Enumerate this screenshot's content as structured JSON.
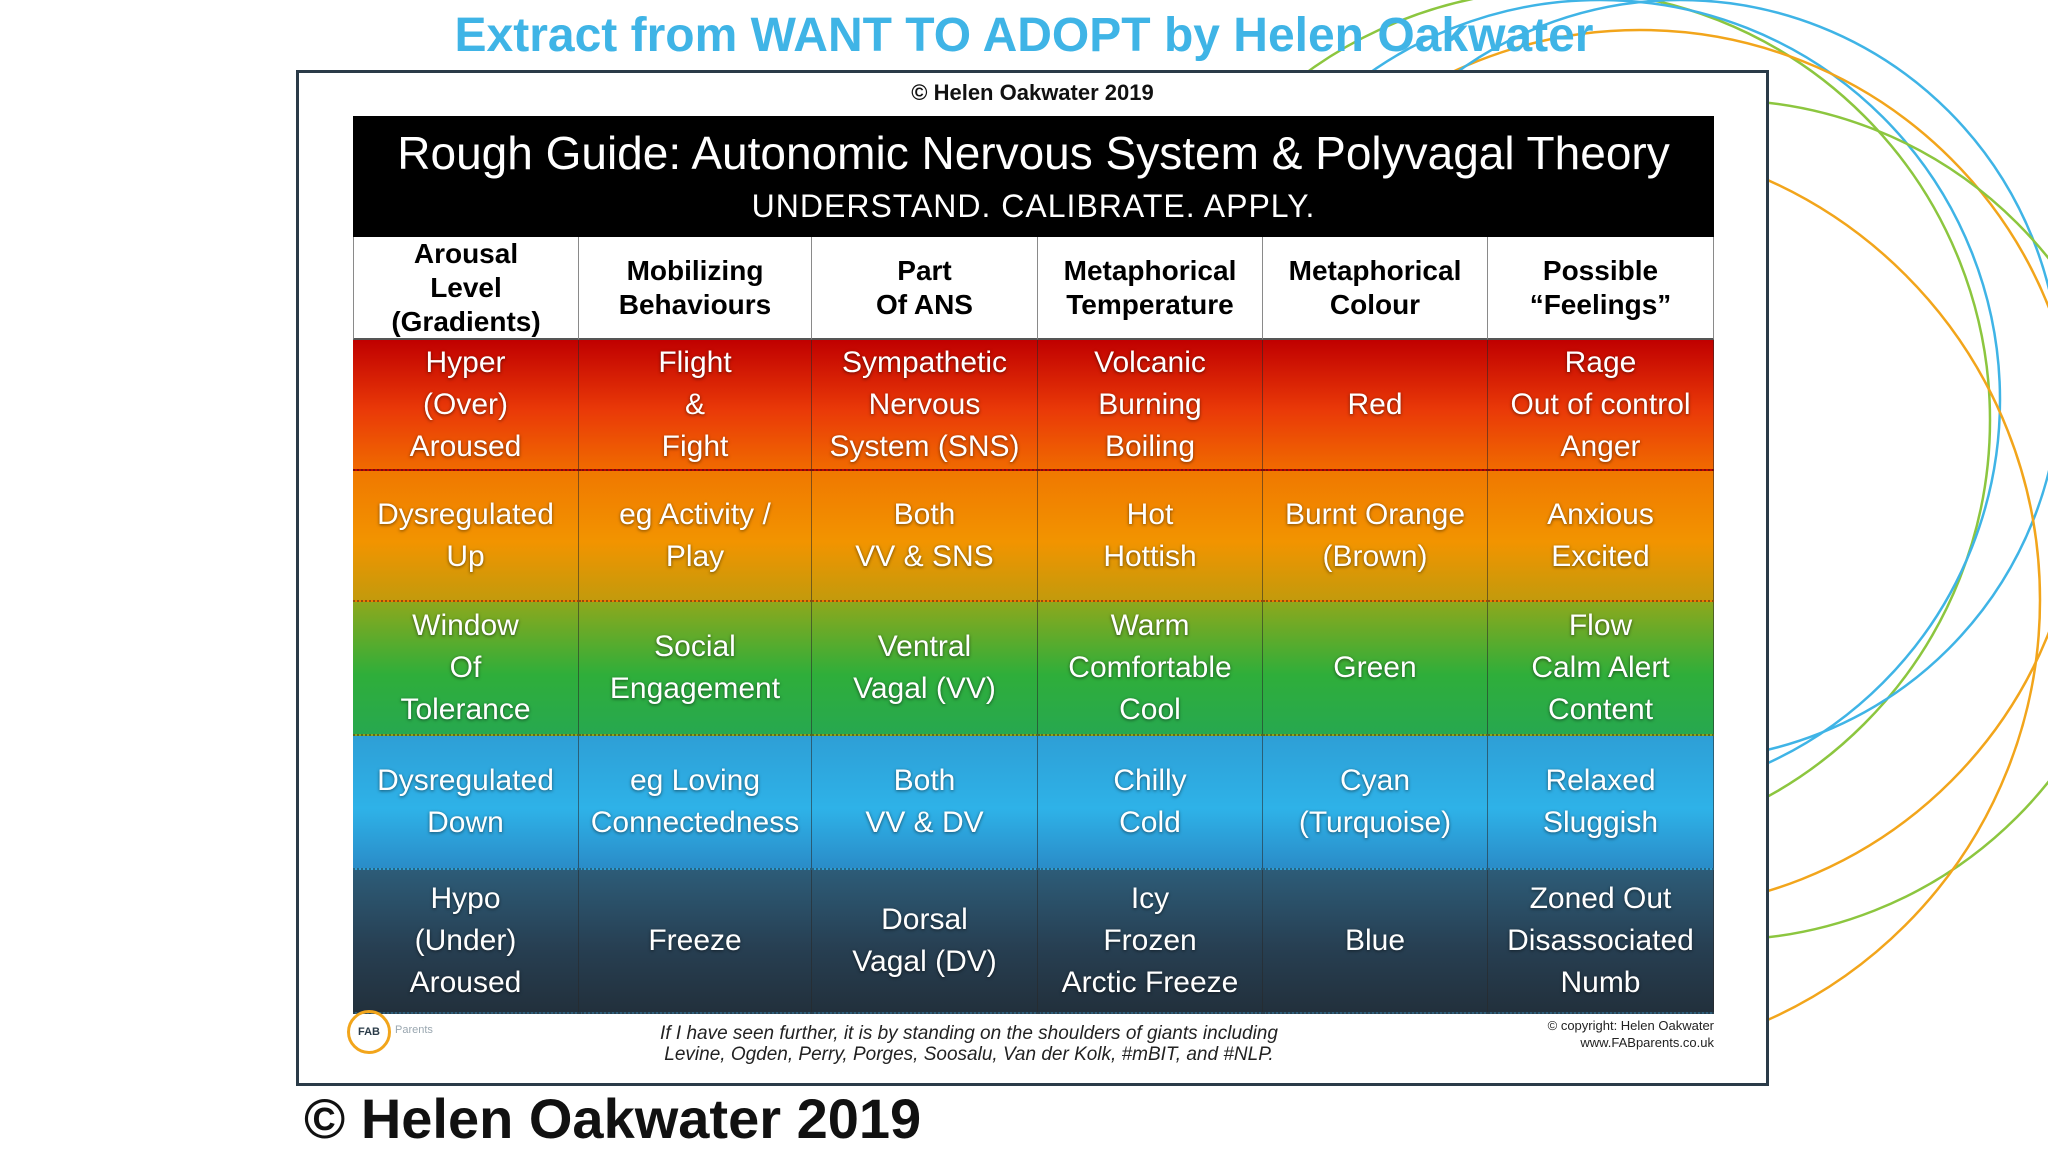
{
  "extract_title": "Extract from WANT TO ADOPT by Helen Oakwater",
  "top_copyright": "© Helen Oakwater 2019",
  "banner": {
    "title": "Rough Guide: Autonomic Nervous System & Polyvagal Theory",
    "subtitle": "UNDERSTAND. CALIBRATE. APPLY."
  },
  "table": {
    "headers": [
      "Arousal\nLevel\n(Gradients)",
      "Mobilizing\nBehaviours",
      "Part\nOf ANS",
      "Metaphorical\nTemperature",
      "Metaphorical\nColour",
      "Possible\n“Feelings”"
    ],
    "rows": [
      [
        "Hyper\n(Over)\nAroused",
        "Flight\n&\nFight",
        "Sympathetic\nNervous\nSystem (SNS)",
        "Volcanic\nBurning\nBoiling",
        "Red",
        "Rage\nOut of control\nAnger"
      ],
      [
        "Dysregulated\nUp",
        "eg Activity /\nPlay",
        "Both\nVV & SNS",
        "Hot\nHottish",
        "Burnt Orange\n(Brown)",
        "Anxious\nExcited"
      ],
      [
        "Window\nOf\nTolerance",
        "Social\nEngagement",
        "Ventral\nVagal (VV)",
        "Warm\nComfortable\nCool",
        "Green",
        "Flow\nCalm Alert\nContent"
      ],
      [
        "Dysregulated\nDown",
        "eg Loving\nConnectedness",
        "Both\nVV & DV",
        "Chilly\nCold",
        "Cyan\n(Turquoise)",
        "Relaxed\nSluggish"
      ],
      [
        "Hypo\n(Under)\nAroused",
        "Freeze",
        "Dorsal\nVagal (DV)",
        "Icy\nFrozen\nArctic Freeze",
        "Blue",
        "Zoned Out\nDisassociated\nNumb"
      ]
    ]
  },
  "footer": {
    "logo_text": "FAB",
    "logo_sub": "Parents",
    "quote_line1": "If I have seen further, it is by standing on the shoulders of giants including",
    "quote_line2": "Levine, Ogden, Perry, Porges, Soosalu, Van der Kolk, #mBIT, and #NLP.",
    "copyright_line": "© copyright: Helen Oakwater",
    "website": "www.FABparents.co.uk"
  },
  "bottom_copyright": "© Helen Oakwater 2019",
  "colors": {
    "title_blue": "#3fb4e6",
    "frame": "#2a3b48",
    "arc_blue": "#3fb4e6",
    "arc_orange": "#f2a51b",
    "arc_green": "#8cc63f"
  }
}
